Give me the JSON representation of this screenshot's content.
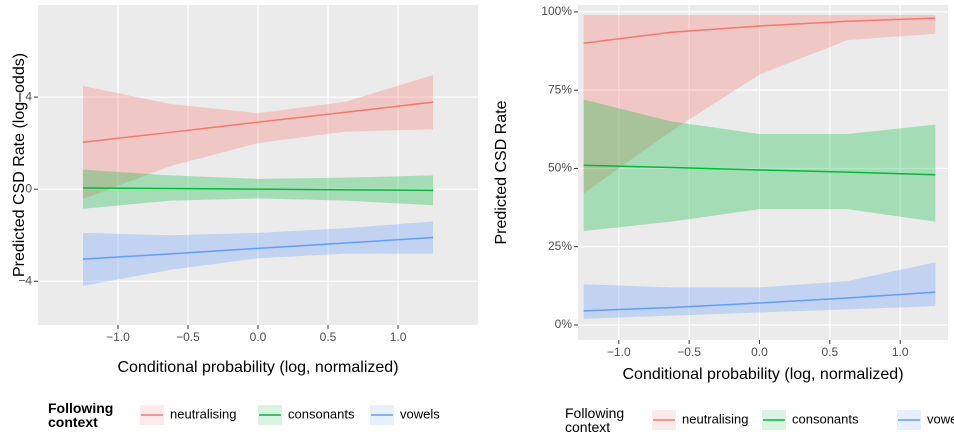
{
  "chart_data": [
    {
      "type": "ribbon-line",
      "xlabel": "Conditional probability (log, normalized)",
      "ylabel": "Predicted CSD Rate (log–odds)",
      "legend_title": "Following context",
      "legend_title_bold": true,
      "x": [
        -1.25,
        -0.625,
        0,
        0.625,
        1.25
      ],
      "series": [
        {
          "name": "neutralising",
          "color": "#F8766D",
          "values": [
            2.04,
            2.47,
            2.91,
            3.34,
            3.78
          ],
          "lower": [
            -0.43,
            1.0,
            2.0,
            2.5,
            2.6
          ],
          "upper": [
            4.48,
            3.7,
            3.3,
            3.8,
            4.96
          ]
        },
        {
          "name": "consonants",
          "color": "#00BA38",
          "values": [
            0.05,
            0.03,
            0.0,
            -0.03,
            -0.05
          ],
          "lower": [
            -0.85,
            -0.5,
            -0.4,
            -0.5,
            -0.7
          ],
          "upper": [
            0.85,
            0.6,
            0.45,
            0.5,
            0.6
          ]
        },
        {
          "name": "vowels",
          "color": "#619CFF",
          "values": [
            -3.04,
            -2.81,
            -2.57,
            -2.34,
            -2.1
          ],
          "lower": [
            -4.2,
            -3.5,
            -3.0,
            -2.8,
            -2.8
          ],
          "upper": [
            -1.9,
            -2.0,
            -1.9,
            -1.7,
            -1.4
          ]
        }
      ],
      "xlim": [
        -1.571,
        1.571
      ],
      "ylim": [
        -5.9,
        8.0
      ],
      "xticks": [
        {
          "value": -1.0,
          "label": "−1.0"
        },
        {
          "value": -0.5,
          "label": "−0.5"
        },
        {
          "value": 0,
          "label": "0.0"
        },
        {
          "value": 0.5,
          "label": "0.5"
        },
        {
          "value": 1.0,
          "label": "1.0"
        }
      ],
      "yticks": [
        {
          "value": -4,
          "label": "−4"
        },
        0,
        4
      ],
      "grid": true
    },
    {
      "type": "ribbon-line",
      "xlabel": "Conditional probability (log, normalized)",
      "ylabel": "Predicted CSD Rate",
      "legend_title": "Following context",
      "legend_title_bold": false,
      "x": [
        -1.25,
        -0.625,
        0,
        0.625,
        1.25
      ],
      "series": [
        {
          "name": "neutralising",
          "color": "#F8766D",
          "values": [
            90,
            93.5,
            95.5,
            97,
            98
          ],
          "lower": [
            42,
            62,
            80,
            91,
            93
          ],
          "upper": [
            99,
            99,
            99,
            99,
            99
          ]
        },
        {
          "name": "consonants",
          "color": "#00BA38",
          "values": [
            51,
            50.3,
            49.5,
            48.8,
            48
          ],
          "lower": [
            30,
            33,
            37,
            37,
            33
          ],
          "upper": [
            72,
            65,
            61,
            61,
            64
          ]
        },
        {
          "name": "vowels",
          "color": "#619CFF",
          "values": [
            4.5,
            5.6,
            7,
            8.6,
            10.5
          ],
          "lower": [
            2,
            3,
            4,
            5,
            6
          ],
          "upper": [
            13,
            12,
            12,
            14,
            20
          ]
        }
      ],
      "xlim": [
        -1.29,
        1.34
      ],
      "ylim": [
        -4.8,
        102.2
      ],
      "xticks": [
        {
          "value": -1.0,
          "label": "−1.0"
        },
        {
          "value": -0.5,
          "label": "−0.5"
        },
        {
          "value": 0,
          "label": "0.0"
        },
        {
          "value": 0.5,
          "label": "0.5"
        },
        {
          "value": 1.0,
          "label": "1.0"
        }
      ],
      "yticks": [
        {
          "value": 0,
          "label": "0%"
        },
        {
          "value": 25,
          "label": "25%"
        },
        {
          "value": 50,
          "label": "50%"
        },
        {
          "value": 75,
          "label": "75%"
        },
        {
          "value": 100,
          "label": "100%"
        }
      ],
      "grid": true
    }
  ]
}
